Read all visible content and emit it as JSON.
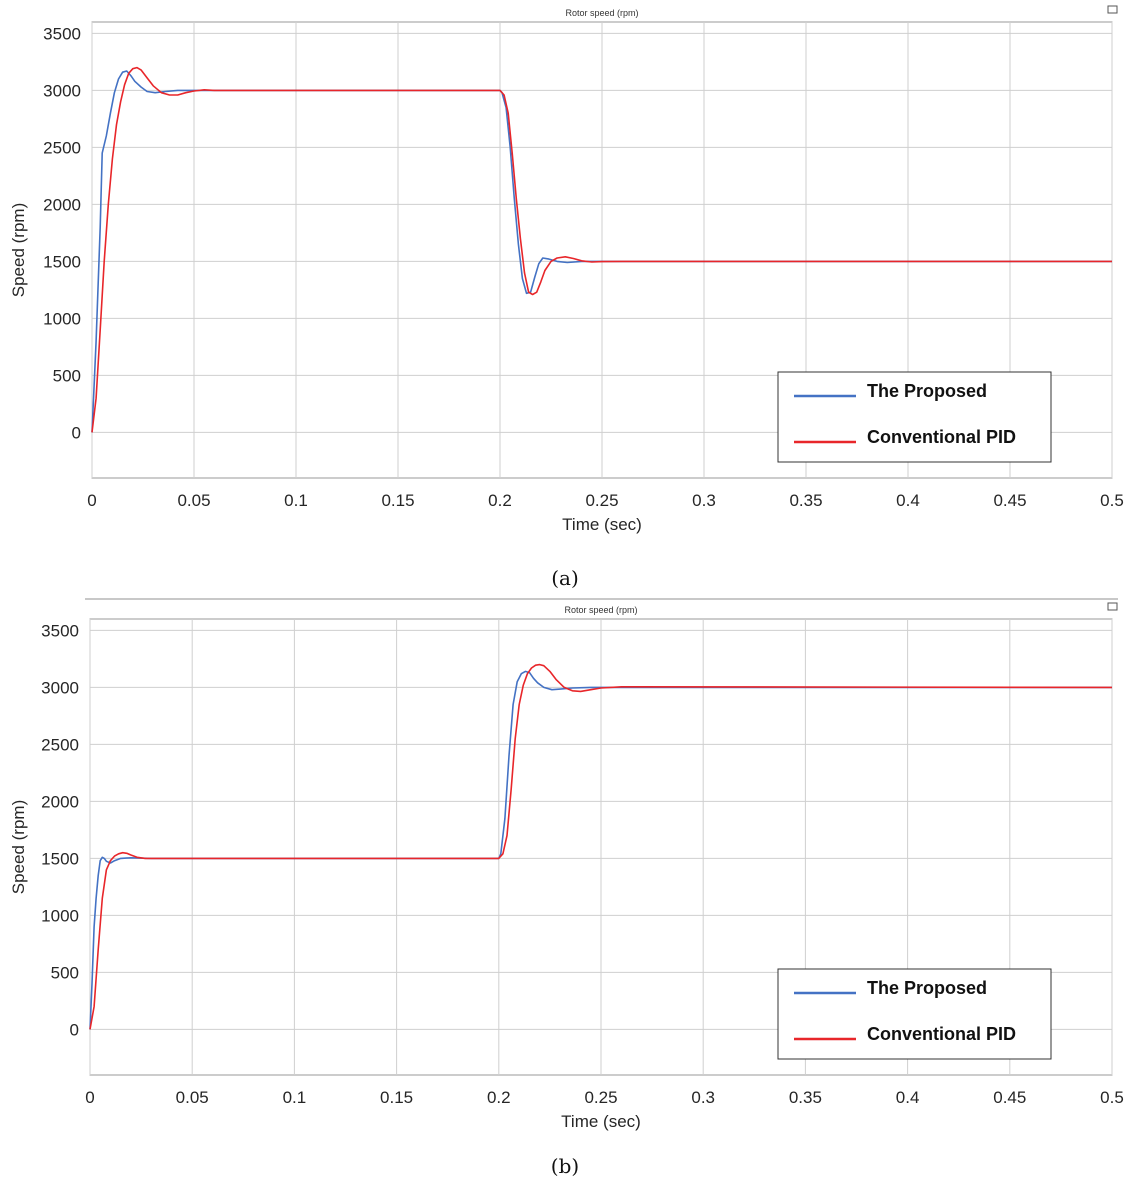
{
  "chart_data": [
    {
      "type": "line",
      "title": "Rotor speed (rpm)",
      "caption": "(a)",
      "xlabel": "Time (sec)",
      "ylabel": "Speed (rpm)",
      "xlim": [
        0,
        0.5
      ],
      "ylim": [
        -400,
        3600
      ],
      "xticks": [
        0,
        0.05,
        0.1,
        0.15,
        0.2,
        0.25,
        0.3,
        0.35,
        0.4,
        0.45,
        0.5
      ],
      "xtick_labels": [
        "0",
        "0.05",
        "0.1",
        "0.15",
        "0.2",
        "0.25",
        "0.3",
        "0.35",
        "0.4",
        "0.45",
        "0.5"
      ],
      "yticks": [
        0,
        500,
        1000,
        1500,
        2000,
        2500,
        3000,
        3500
      ],
      "ytick_labels": [
        "0",
        "500",
        "1000",
        "1500",
        "2000",
        "2500",
        "3000",
        "3500"
      ],
      "grid": true,
      "legend_position": "bottom-right",
      "series": [
        {
          "name": "The Proposed",
          "color": "#4472c4",
          "x": [
            0,
            0.002,
            0.004,
            0.005,
            0.007,
            0.009,
            0.011,
            0.013,
            0.015,
            0.017,
            0.019,
            0.021,
            0.024,
            0.027,
            0.031,
            0.036,
            0.042,
            0.05,
            0.06,
            0.2,
            0.201,
            0.203,
            0.205,
            0.207,
            0.209,
            0.211,
            0.213,
            0.215,
            0.217,
            0.219,
            0.221,
            0.224,
            0.228,
            0.233,
            0.24,
            0.26,
            0.5
          ],
          "y": [
            0,
            800,
            1800,
            2450,
            2600,
            2800,
            2980,
            3100,
            3160,
            3170,
            3130,
            3080,
            3030,
            2990,
            2980,
            2990,
            3000,
            3000,
            3000,
            3000,
            2980,
            2850,
            2500,
            2050,
            1650,
            1350,
            1220,
            1230,
            1360,
            1480,
            1530,
            1520,
            1500,
            1490,
            1500,
            1500,
            1500
          ]
        },
        {
          "name": "Conventional PID",
          "color": "#e8262a",
          "x": [
            0,
            0.002,
            0.004,
            0.006,
            0.008,
            0.01,
            0.012,
            0.014,
            0.016,
            0.018,
            0.02,
            0.022,
            0.024,
            0.027,
            0.03,
            0.034,
            0.038,
            0.042,
            0.046,
            0.05,
            0.055,
            0.06,
            0.075,
            0.2,
            0.202,
            0.204,
            0.206,
            0.208,
            0.21,
            0.212,
            0.214,
            0.216,
            0.218,
            0.22,
            0.222,
            0.225,
            0.228,
            0.232,
            0.236,
            0.24,
            0.245,
            0.25,
            0.26,
            0.5
          ],
          "y": [
            0,
            300,
            900,
            1500,
            2000,
            2400,
            2700,
            2900,
            3050,
            3150,
            3190,
            3200,
            3180,
            3110,
            3040,
            2980,
            2960,
            2960,
            2980,
            2995,
            3005,
            3000,
            3000,
            3000,
            2960,
            2800,
            2450,
            2050,
            1700,
            1400,
            1230,
            1210,
            1230,
            1320,
            1420,
            1500,
            1530,
            1540,
            1525,
            1505,
            1495,
            1498,
            1500,
            1500
          ]
        }
      ]
    },
    {
      "type": "line",
      "title": "Rotor speed (rpm)",
      "caption": "(b)",
      "xlabel": "Time (sec)",
      "ylabel": "Speed (rpm)",
      "xlim": [
        0,
        0.5
      ],
      "ylim": [
        -400,
        3600
      ],
      "xticks": [
        0,
        0.05,
        0.1,
        0.15,
        0.2,
        0.25,
        0.3,
        0.35,
        0.4,
        0.45,
        0.5
      ],
      "xtick_labels": [
        "0",
        "0.05",
        "0.1",
        "0.15",
        "0.2",
        "0.25",
        "0.3",
        "0.35",
        "0.4",
        "0.45",
        "0.5"
      ],
      "yticks": [
        0,
        500,
        1000,
        1500,
        2000,
        2500,
        3000,
        3500
      ],
      "ytick_labels": [
        "0",
        "500",
        "1000",
        "1500",
        "2000",
        "2500",
        "3000",
        "3500"
      ],
      "grid": true,
      "legend_position": "bottom-right",
      "series": [
        {
          "name": "The Proposed",
          "color": "#4472c4",
          "x": [
            0,
            0.001,
            0.002,
            0.003,
            0.004,
            0.005,
            0.006,
            0.007,
            0.008,
            0.01,
            0.012,
            0.015,
            0.02,
            0.03,
            0.04,
            0.2,
            0.201,
            0.203,
            0.205,
            0.207,
            0.209,
            0.211,
            0.213,
            0.215,
            0.217,
            0.219,
            0.222,
            0.226,
            0.23,
            0.236,
            0.245,
            0.26,
            0.5
          ],
          "y": [
            0,
            400,
            900,
            1150,
            1350,
            1480,
            1510,
            1500,
            1475,
            1460,
            1480,
            1500,
            1505,
            1500,
            1500,
            1500,
            1540,
            1850,
            2400,
            2850,
            3050,
            3120,
            3140,
            3130,
            3080,
            3040,
            3000,
            2980,
            2985,
            2995,
            3000,
            3000,
            3000
          ]
        },
        {
          "name": "Conventional PID",
          "color": "#e8262a",
          "x": [
            0,
            0.002,
            0.004,
            0.006,
            0.008,
            0.01,
            0.012,
            0.014,
            0.016,
            0.018,
            0.02,
            0.023,
            0.027,
            0.032,
            0.04,
            0.2,
            0.202,
            0.204,
            0.206,
            0.208,
            0.21,
            0.212,
            0.214,
            0.216,
            0.218,
            0.22,
            0.222,
            0.225,
            0.228,
            0.232,
            0.236,
            0.24,
            0.245,
            0.25,
            0.26,
            0.5
          ],
          "y": [
            0,
            200,
            700,
            1150,
            1400,
            1480,
            1520,
            1540,
            1550,
            1545,
            1530,
            1510,
            1500,
            1500,
            1500,
            1500,
            1540,
            1700,
            2100,
            2550,
            2850,
            3020,
            3120,
            3170,
            3195,
            3200,
            3190,
            3140,
            3070,
            3000,
            2970,
            2965,
            2980,
            2995,
            3005,
            3000
          ]
        }
      ]
    }
  ]
}
